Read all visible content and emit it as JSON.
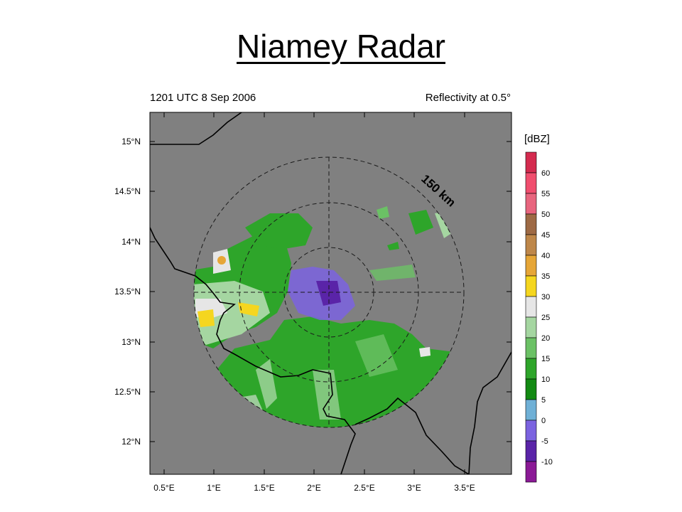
{
  "slide": {
    "title": "Niamey Radar"
  },
  "map": {
    "left_title": "1201 UTC 8 Sep 2006",
    "right_title": "Reflectivity at 0.5°",
    "x_ticks": [
      "0.5°E",
      "1°E",
      "1.5°E",
      "2°E",
      "2.5°E",
      "3°E",
      "3.5°E"
    ],
    "y_ticks": [
      "15°N",
      "14.5°N",
      "14°N",
      "13.5°N",
      "13°N",
      "12.5°N",
      "12°N"
    ],
    "range_label": "150 km",
    "colors": {
      "background": "#808080",
      "ring_color": "#000000",
      "border_color": "#000000"
    }
  },
  "colorbar": {
    "unit": "[dBZ]",
    "levels": [
      "60",
      "55",
      "50",
      "45",
      "40",
      "35",
      "30",
      "25",
      "20",
      "15",
      "10",
      "5",
      "0",
      "-5",
      "-10"
    ],
    "colors": [
      "#d42b4f",
      "#f04e6e",
      "#e8657e",
      "#9e6a45",
      "#be874a",
      "#e6a637",
      "#f5d61f",
      "#e6e6e6",
      "#a5d6a1",
      "#6bc165",
      "#2ea52a",
      "#138a13",
      "#6fb0d6",
      "#7b63e0",
      "#5a24a8",
      "#8b1a96"
    ]
  }
}
